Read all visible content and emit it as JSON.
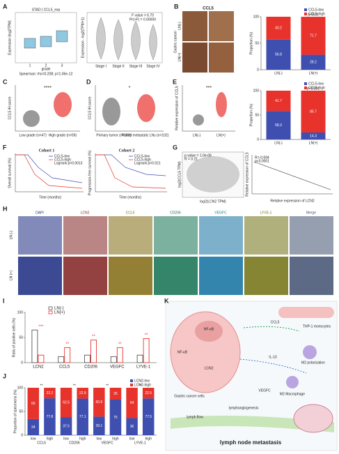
{
  "panels": {
    "A": {
      "label": "A",
      "box": {
        "title": "STAD | CCL5_exp",
        "ylabel": "Expression (log2TPM)",
        "xlabel": "grade",
        "categories": [
          "1",
          "2",
          "3"
        ],
        "caption": "Spearman: rho=0.208; p=1.06e-12"
      },
      "violin": {
        "ylabel": "Expression - log2(TPM+1)",
        "stats": [
          "F value = 6.70",
          "Pr(>F) = 0.00000"
        ],
        "categories": [
          "Stage I",
          "Stage II",
          "Stage III",
          "Stage IV"
        ]
      }
    },
    "B": {
      "label": "B",
      "image_title": "CCL5",
      "rows": [
        "LN(-)",
        "LN(+)"
      ],
      "side": "Gastric cancer",
      "chart": {
        "type": "stacked-bar",
        "ylabel": "Proportion (%)",
        "categories": [
          "LN(-)",
          "LN(+)"
        ],
        "p": "p<0.01",
        "series": [
          {
            "name": "CCL5-low",
            "color": "#3f4fb0",
            "values": [
              56.8,
              28.2
            ]
          },
          {
            "name": "CCL5-high",
            "color": "#e8332d",
            "values": [
              43.2,
              71.7
            ]
          }
        ],
        "ylim": [
          0,
          100
        ],
        "yticks": [
          0,
          50,
          100
        ]
      }
    },
    "C": {
      "label": "C",
      "ylabel": "CCL5 IH-score",
      "categories": [
        "Low grade (n=47)",
        "High grade (n=59)"
      ],
      "sig": "****"
    },
    "D": {
      "label": "D",
      "ylabel": "CCL5 IH-score",
      "categories": [
        "Primary tumor (n=102)",
        "Paired metastatic LNs (n=102)"
      ],
      "sig": "*"
    },
    "E": {
      "label": "E",
      "ylabel": "Relative expression of CCL5",
      "categories": [
        "LN(-)",
        "LN(+)"
      ],
      "sig": "***",
      "chart": {
        "type": "stacked-bar",
        "ylabel": "Proportion (%)",
        "categories": [
          "LN(-)",
          "LN(+)"
        ],
        "p": "p<0.001",
        "series": [
          {
            "name": "CCL5-low",
            "color": "#3f4fb0",
            "values": [
              58.3,
              14.3
            ]
          },
          {
            "name": "CCL5-high",
            "color": "#e8332d",
            "values": [
              41.7,
              85.7
            ]
          }
        ],
        "ylim": [
          0,
          100
        ],
        "yticks": [
          0,
          50,
          100
        ]
      }
    },
    "F": {
      "label": "F",
      "xlabel": "Time (months)",
      "plots": [
        {
          "title": "Cohort 1",
          "ylabel": "Overall survival (%)",
          "legend": [
            "CCL5-low",
            "CCL5-high"
          ],
          "p": "Logrank p=0.0013"
        },
        {
          "title": "Cohort 2",
          "ylabel": "Progression-free survival (%)",
          "legend": [
            "CCL5-low",
            "CCL5-high"
          ],
          "p": "Logrank p=0.021"
        }
      ]
    },
    "G": {
      "label": "G",
      "left": {
        "stats": [
          "p value = 1.0e-06",
          "R = 0.21"
        ],
        "xlabel": "log2(LCN2 TPM)",
        "ylabel": "log2(CCL5 TPM)"
      },
      "right": {
        "stats": [
          "R=-0.694",
          "p<0.0001"
        ],
        "xlabel": "Relative expression of LCN2",
        "ylabel": "Relative expression of CCL5"
      }
    },
    "H": {
      "label": "H",
      "channels": [
        "DAPI",
        "LCN2",
        "CCL5",
        "CD206",
        "VEGFC",
        "LYVE-1",
        "Merge"
      ],
      "rows": [
        "LN (-)",
        "LN (+)"
      ]
    },
    "I": {
      "label": "I",
      "chart": {
        "type": "grouped-bar",
        "ylabel": "Ratio of positive cells (%)",
        "categories": [
          "LCN2",
          "CCL5",
          "CD206",
          "VEGFC",
          "LYVE-1"
        ],
        "series": [
          {
            "name": "LN(-)",
            "color": "#555555",
            "values": [
              65,
              12,
              15,
              12,
              15
            ]
          },
          {
            "name": "LN(+)",
            "color": "#e8332d",
            "values": [
              15,
              30,
              45,
              30,
              48
            ]
          }
        ],
        "sig": [
          "***",
          "**",
          "**",
          "**",
          "**"
        ],
        "ylim": [
          0,
          100
        ],
        "yticks": [
          0,
          50,
          100
        ]
      }
    },
    "J": {
      "label": "J",
      "chart": {
        "type": "stacked-bar",
        "ylabel": "Proportion of specimens (%)",
        "categories": [
          "low",
          "high",
          "low",
          "high",
          "low",
          "high",
          "low",
          "high"
        ],
        "groups": [
          "CCL5",
          "CD206",
          "VEGFC",
          "LYVE-1"
        ],
        "sig": [
          "**",
          "**",
          "**",
          "**"
        ],
        "series": [
          {
            "name": "LCN2-low",
            "color": "#3f4fb0",
            "values": [
              34.0,
              77.8,
              37.5,
              77.1,
              39.1,
              75.0,
              36.0,
              77.5
            ]
          },
          {
            "name": "LCN2-high",
            "color": "#e8332d",
            "values": [
              66.0,
              22.2,
              62.5,
              22.9,
              60.9,
              25.0,
              64.0,
              22.5
            ]
          }
        ],
        "ylim": [
          0,
          100
        ],
        "yticks": [
          0,
          50,
          100
        ]
      }
    },
    "K": {
      "label": "K",
      "texts": {
        "nfkb1": "NF-κB",
        "nfkb2": "NF-κB",
        "ccl5": "CCL5",
        "lcn2": "LCN2",
        "cells": "Gastric cancer cells",
        "il10": "IL-10",
        "vegfc": "VEGFC",
        "m2": "M2 Macrophage",
        "pol": "M2 polarization",
        "mono": "THP-1 monocytes",
        "lymph": "lymphangiogenesis",
        "flow": "lymph flow",
        "title": "lymph node metastasis"
      }
    }
  }
}
